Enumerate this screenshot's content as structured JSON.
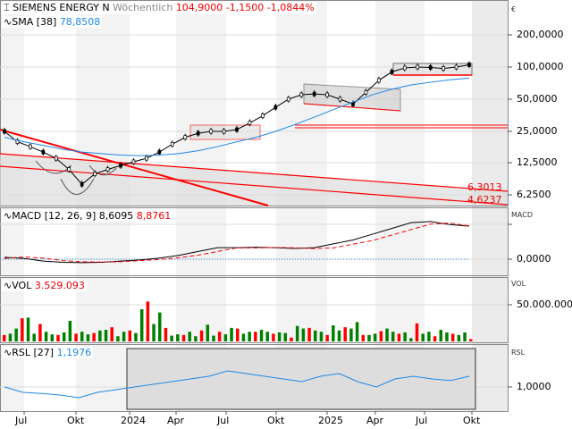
{
  "header": {
    "symbol": "SIEMENS ENERGY N",
    "interval": "Wöchentlich",
    "price": "104,9000",
    "change": "-1,1500",
    "change_pct": "-1,0844%"
  },
  "sma": {
    "label": "SMA",
    "period": "[38]",
    "value": "78,8508"
  },
  "macd": {
    "label": "MACD",
    "params": "[12, 26, 9]",
    "value": "8,6095",
    "signal": "8,8761",
    "axis_unit": "MACD",
    "tick": "0,0000"
  },
  "vol": {
    "label": "VOL",
    "value": "3.529.093",
    "axis_unit": "VOL",
    "tick": "50.000.000"
  },
  "rsl": {
    "label": "RSL",
    "period": "[27]",
    "value": "1,1976",
    "axis_unit": "RSL",
    "tick": "1,0000"
  },
  "price_axis": {
    "unit": "€",
    "ticks": [
      "200,0000",
      "100,0000",
      "50,0000",
      "25,0000",
      "12,5000",
      "6,2500"
    ]
  },
  "annotations": {
    "upper": "6,3013",
    "lower": "4,6237"
  },
  "colors": {
    "up": "#008000",
    "down": "#ff0000",
    "sma": "#1e88e5",
    "trend": "#ff0000"
  },
  "chart_data": {
    "type": "line",
    "title": "SIEMENS ENERGY N Wöchentlich",
    "x_ticks": [
      "Jul",
      "Okt",
      "2024",
      "Apr",
      "Jul",
      "Okt",
      "2025",
      "Apr",
      "Jul",
      "Okt"
    ],
    "price_scale": "log",
    "ylim": [
      5.5,
      280
    ],
    "price": [
      25,
      20,
      18,
      16,
      14,
      11,
      8,
      10,
      11,
      12,
      13,
      14,
      16,
      19,
      22,
      24,
      25,
      25,
      26,
      30,
      35,
      42,
      50,
      55,
      56,
      55,
      50,
      45,
      58,
      75,
      90,
      98,
      100,
      99,
      97,
      100,
      105
    ],
    "sma": [
      22,
      20,
      18.5,
      17,
      16,
      15.5,
      15,
      14.8,
      15,
      15.5,
      16.5,
      18,
      20,
      22,
      25,
      29,
      34,
      40,
      47,
      55,
      62,
      68,
      72,
      76,
      78.85
    ],
    "volume_millions": [
      10,
      12,
      20,
      36,
      37,
      12,
      27,
      15,
      11,
      10,
      14,
      32,
      12,
      15,
      11,
      13,
      17,
      18,
      22,
      8,
      15,
      17,
      13,
      50,
      62,
      27,
      45,
      21,
      9,
      11,
      10,
      15,
      8,
      17,
      26,
      9,
      15,
      11,
      21,
      20,
      12,
      15,
      15,
      18,
      15,
      12,
      14,
      13,
      6,
      24,
      20,
      21,
      17,
      15,
      10,
      25,
      17,
      22,
      20,
      30,
      10,
      10,
      12,
      16,
      20,
      15,
      12,
      14,
      5,
      28,
      12,
      15,
      8,
      18,
      14,
      12,
      10,
      14,
      3.53
    ],
    "macd": [
      0.5,
      0.2,
      -0.5,
      -0.8,
      -0.9,
      -0.8,
      -0.5,
      -0.2,
      0.3,
      1,
      2,
      3,
      3,
      3.1,
      3,
      2.8,
      3,
      4,
      5,
      6.5,
      8,
      9.5,
      9.8,
      9,
      8.6
    ],
    "rsl": [
      1.0,
      0.9,
      0.88,
      0.85,
      0.8,
      0.9,
      0.95,
      1.0,
      1.05,
      1.1,
      1.15,
      1.2,
      1.3,
      1.25,
      1.2,
      1.15,
      1.1,
      1.2,
      1.25,
      1.1,
      1.0,
      1.15,
      1.2,
      1.15,
      1.12,
      1.2
    ]
  }
}
